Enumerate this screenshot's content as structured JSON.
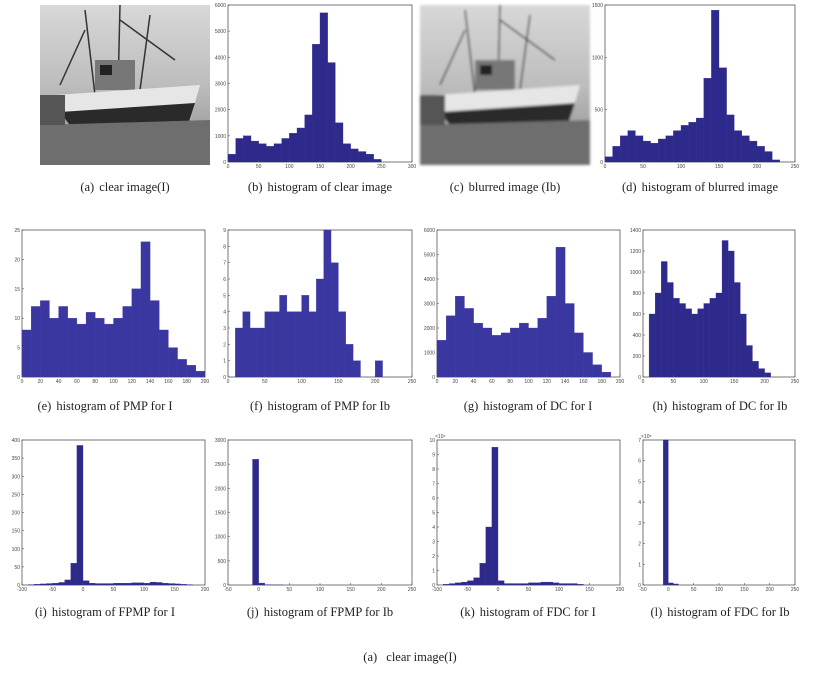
{
  "figure": {
    "panels": [
      {
        "label": "(a)",
        "caption": "clear image(I)"
      },
      {
        "label": "(b)",
        "caption": "histogram of clear image",
        "chart": {
          "type": "histogram",
          "color": "#2e2a8c",
          "xlim": [
            0,
            300
          ],
          "ylim": [
            0,
            6000
          ],
          "xticks": [
            0,
            50,
            100,
            150,
            200,
            250,
            300
          ],
          "yticks": [
            0,
            1000,
            2000,
            3000,
            4000,
            5000,
            6000
          ],
          "bins": [
            0,
            12.5,
            25,
            37.5,
            50,
            62.5,
            75,
            87.5,
            100,
            112.5,
            125,
            137.5,
            150,
            162.5,
            175,
            187.5,
            200,
            212.5,
            225,
            237.5,
            250,
            262.5,
            275,
            287.5,
            300
          ],
          "values": [
            300,
            900,
            1000,
            800,
            700,
            600,
            700,
            900,
            1100,
            1300,
            1800,
            4500,
            5700,
            3800,
            1500,
            700,
            500,
            400,
            300,
            100,
            0,
            0,
            0,
            0
          ]
        }
      },
      {
        "label": "(c)",
        "caption": "blurred image (Ib)"
      },
      {
        "label": "(d)",
        "caption": "histogram of blurred image",
        "chart": {
          "type": "histogram",
          "color": "#2e2a8c",
          "xlim": [
            0,
            250
          ],
          "ylim": [
            0,
            1500
          ],
          "xticks": [
            0,
            50,
            100,
            150,
            200,
            250
          ],
          "yticks": [
            0,
            500,
            1000,
            1500
          ],
          "bins": [
            0,
            10,
            20,
            30,
            40,
            50,
            60,
            70,
            80,
            90,
            100,
            110,
            120,
            130,
            140,
            150,
            160,
            170,
            180,
            190,
            200,
            210,
            220,
            230,
            240,
            250
          ],
          "values": [
            50,
            150,
            250,
            300,
            250,
            200,
            180,
            220,
            250,
            300,
            350,
            380,
            420,
            800,
            1450,
            900,
            450,
            300,
            250,
            200,
            150,
            100,
            20,
            0,
            0
          ]
        }
      },
      {
        "label": "(e)",
        "caption": "histogram of PMP for I",
        "chart": {
          "type": "histogram",
          "color": "#3b37a0",
          "xlim": [
            0,
            200
          ],
          "ylim": [
            0,
            25
          ],
          "xticks": [
            0,
            20,
            40,
            60,
            80,
            100,
            120,
            140,
            160,
            180,
            200
          ],
          "yticks": [
            0,
            5,
            10,
            15,
            20,
            25
          ],
          "bins": [
            0,
            10,
            20,
            30,
            40,
            50,
            60,
            70,
            80,
            90,
            100,
            110,
            120,
            130,
            140,
            150,
            160,
            170,
            180,
            190,
            200
          ],
          "values": [
            8,
            12,
            13,
            10,
            12,
            10,
            9,
            11,
            10,
            9,
            10,
            12,
            15,
            23,
            13,
            8,
            5,
            3,
            2,
            1
          ]
        }
      },
      {
        "label": "(f)",
        "caption": "histogram of PMP for Ib",
        "chart": {
          "type": "histogram",
          "color": "#3b37a0",
          "xlim": [
            0,
            250
          ],
          "ylim": [
            0,
            9
          ],
          "xticks": [
            0,
            50,
            100,
            150,
            200,
            250
          ],
          "yticks": [
            0,
            1,
            2,
            3,
            4,
            5,
            6,
            7,
            8,
            9
          ],
          "bins": [
            0,
            10,
            20,
            30,
            40,
            50,
            60,
            70,
            80,
            90,
            100,
            110,
            120,
            130,
            140,
            150,
            160,
            170,
            180,
            190,
            200,
            210,
            220,
            230,
            240,
            250
          ],
          "values": [
            0,
            3,
            4,
            3,
            3,
            4,
            4,
            5,
            4,
            4,
            5,
            4,
            6,
            9,
            7,
            4,
            2,
            1,
            0,
            0,
            1,
            0,
            0,
            0,
            0
          ]
        }
      },
      {
        "label": "(g)",
        "caption": "histogram of DC for I",
        "chart": {
          "type": "histogram",
          "color": "#3b37a0",
          "xlim": [
            0,
            200
          ],
          "ylim": [
            0,
            6000
          ],
          "xticks": [
            0,
            20,
            40,
            60,
            80,
            100,
            120,
            140,
            160,
            180,
            200
          ],
          "yticks": [
            0,
            1000,
            2000,
            3000,
            4000,
            5000,
            6000
          ],
          "bins": [
            0,
            10,
            20,
            30,
            40,
            50,
            60,
            70,
            80,
            90,
            100,
            110,
            120,
            130,
            140,
            150,
            160,
            170,
            180,
            190,
            200
          ],
          "values": [
            1500,
            2500,
            3300,
            2800,
            2200,
            2000,
            1700,
            1800,
            2000,
            2200,
            2000,
            2400,
            3300,
            5300,
            3000,
            1800,
            1000,
            500,
            200,
            0
          ]
        }
      },
      {
        "label": "(h)",
        "caption": "histogram of DC for Ib",
        "chart": {
          "type": "histogram",
          "color": "#2e2a8c",
          "xlim": [
            0,
            250
          ],
          "ylim": [
            0,
            1400
          ],
          "xticks": [
            0,
            50,
            100,
            150,
            200,
            250
          ],
          "yticks": [
            0,
            200,
            400,
            600,
            800,
            1000,
            1200,
            1400
          ],
          "bins": [
            0,
            10,
            20,
            30,
            40,
            50,
            60,
            70,
            80,
            90,
            100,
            110,
            120,
            130,
            140,
            150,
            160,
            170,
            180,
            190,
            200,
            210,
            220,
            230,
            240,
            250
          ],
          "values": [
            0,
            600,
            800,
            1100,
            900,
            750,
            700,
            650,
            600,
            650,
            700,
            750,
            800,
            1300,
            1200,
            900,
            600,
            300,
            150,
            80,
            40,
            0,
            0,
            0,
            0
          ]
        }
      },
      {
        "label": "(i)",
        "caption": "histogram of FPMP for I",
        "chart": {
          "type": "histogram",
          "color": "#2e2a8c",
          "xlim": [
            -100,
            200
          ],
          "ylim": [
            0,
            400
          ],
          "xticks": [
            -100,
            -50,
            0,
            50,
            100,
            150,
            200
          ],
          "yticks": [
            0,
            50,
            100,
            150,
            200,
            250,
            300,
            350,
            400
          ],
          "bins": [
            -100,
            -90,
            -80,
            -70,
            -60,
            -50,
            -40,
            -30,
            -20,
            -10,
            0,
            10,
            20,
            30,
            40,
            50,
            60,
            70,
            80,
            90,
            100,
            110,
            120,
            130,
            140,
            150,
            160,
            170,
            180,
            190,
            200
          ],
          "values": [
            0,
            1,
            2,
            3,
            4,
            5,
            7,
            14,
            60,
            385,
            12,
            5,
            4,
            4,
            4,
            5,
            5,
            5,
            6,
            6,
            5,
            8,
            7,
            5,
            4,
            3,
            2,
            1,
            0,
            0
          ]
        }
      },
      {
        "label": "(j)",
        "caption": "histogram of FPMP for Ib",
        "chart": {
          "type": "histogram",
          "color": "#2e2a8c",
          "xlim": [
            -50,
            250
          ],
          "ylim": [
            0,
            3000
          ],
          "xticks": [
            -50,
            0,
            50,
            100,
            150,
            200,
            250
          ],
          "yticks": [
            0,
            500,
            1000,
            1500,
            2000,
            2500,
            3000
          ],
          "bins": [
            -50,
            -40,
            -30,
            -20,
            -10,
            0,
            10,
            20,
            30,
            40,
            50,
            60,
            70,
            80,
            90,
            100,
            110,
            120,
            130,
            140,
            150,
            160,
            170,
            180,
            190,
            200,
            210,
            220,
            230,
            240,
            250
          ],
          "values": [
            0,
            0,
            0,
            0,
            2600,
            40,
            5,
            2,
            1,
            0,
            0,
            0,
            0,
            0,
            0,
            0,
            0,
            0,
            0,
            0,
            0,
            0,
            0,
            0,
            0,
            0,
            0,
            0,
            0,
            0
          ]
        }
      },
      {
        "label": "(k)",
        "caption": "histogram of FDC for I",
        "chart": {
          "type": "histogram",
          "color": "#2e2a8c",
          "y_multiplier": "×10⁴",
          "xlim": [
            -100,
            200
          ],
          "ylim": [
            0,
            10
          ],
          "xticks": [
            -100,
            -50,
            0,
            50,
            100,
            150,
            200
          ],
          "yticks": [
            0,
            1,
            2,
            3,
            4,
            5,
            6,
            7,
            8,
            9,
            10
          ],
          "bins": [
            -100,
            -90,
            -80,
            -70,
            -60,
            -50,
            -40,
            -30,
            -20,
            -10,
            0,
            10,
            20,
            30,
            40,
            50,
            60,
            70,
            80,
            90,
            100,
            110,
            120,
            130,
            140,
            150,
            160,
            170,
            180,
            190,
            200
          ],
          "values": [
            0,
            0.05,
            0.1,
            0.15,
            0.2,
            0.3,
            0.5,
            1.5,
            4,
            9.5,
            0.3,
            0.1,
            0.1,
            0.1,
            0.1,
            0.15,
            0.15,
            0.2,
            0.2,
            0.15,
            0.1,
            0.1,
            0.1,
            0.05,
            0,
            0,
            0,
            0,
            0,
            0
          ]
        }
      },
      {
        "label": "(l)",
        "caption": "histogram of FDC for Ib",
        "chart": {
          "type": "histogram",
          "color": "#2e2a8c",
          "y_multiplier": "×10⁵",
          "xlim": [
            -50,
            250
          ],
          "ylim": [
            0,
            7
          ],
          "xticks": [
            -50,
            0,
            50,
            100,
            150,
            200,
            250
          ],
          "yticks": [
            0,
            1,
            2,
            3,
            4,
            5,
            6,
            7
          ],
          "bins": [
            -50,
            -40,
            -30,
            -20,
            -10,
            0,
            10,
            20,
            30,
            40,
            50,
            60,
            70,
            80,
            90,
            100,
            110,
            120,
            130,
            140,
            150,
            160,
            170,
            180,
            190,
            200,
            210,
            220,
            230,
            240,
            250
          ],
          "values": [
            0,
            0,
            0,
            0,
            7,
            0.1,
            0.05,
            0,
            0,
            0,
            0,
            0,
            0,
            0,
            0,
            0,
            0,
            0,
            0,
            0,
            0,
            0,
            0,
            0,
            0,
            0,
            0,
            0,
            0,
            0
          ]
        }
      }
    ],
    "caption_label": "(a)",
    "caption": "clear image(I)"
  }
}
